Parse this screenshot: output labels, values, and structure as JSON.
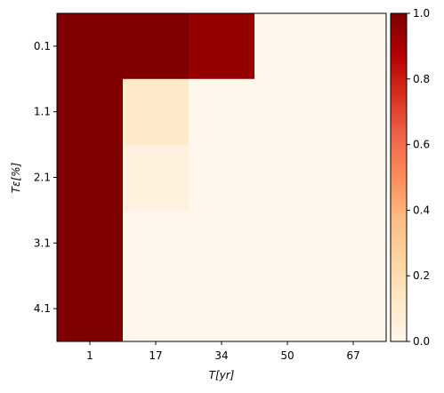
{
  "chart_data": {
    "type": "heatmap",
    "x_categories": [
      "1",
      "17",
      "34",
      "50",
      "67"
    ],
    "y_categories": [
      "0.1",
      "1.1",
      "2.1",
      "3.1",
      "4.1"
    ],
    "values": [
      [
        1.0,
        1.0,
        0.95,
        0.0,
        0.0
      ],
      [
        1.0,
        0.12,
        0.0,
        0.0,
        0.0
      ],
      [
        1.0,
        0.05,
        0.0,
        0.0,
        0.0
      ],
      [
        1.0,
        0.0,
        0.0,
        0.0,
        0.0
      ],
      [
        1.0,
        0.0,
        0.0,
        0.0,
        0.0
      ]
    ],
    "xlabel": "T[yr]",
    "ylabel": "Tε[%]",
    "colormap": "OrRd",
    "colorbar": {
      "range": [
        0.0,
        1.0
      ],
      "ticks": [
        "0.0",
        "0.2",
        "0.4",
        "0.6",
        "0.8",
        "1.0"
      ]
    },
    "colors": {
      "low": "#fff7ec",
      "high": "#7f0000"
    }
  }
}
